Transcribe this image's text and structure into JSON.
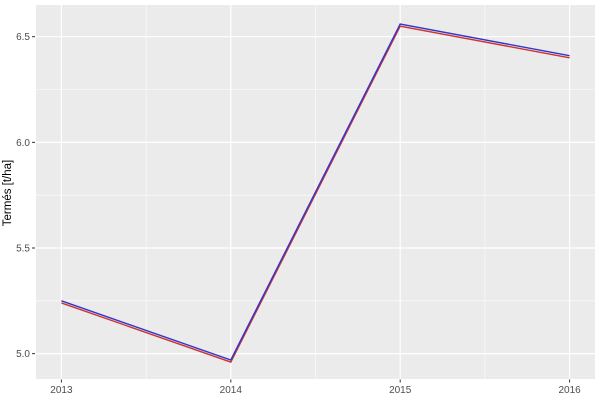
{
  "chart_data": {
    "type": "line",
    "title": "",
    "xlabel": "",
    "ylabel": "Termés [t/ha]",
    "x": [
      2013,
      2014,
      2015,
      2016
    ],
    "x_ticks": [
      2013,
      2014,
      2015,
      2016
    ],
    "x_tick_labels": [
      "2013",
      "2014",
      "2015",
      "2016"
    ],
    "y_ticks": [
      5.0,
      5.5,
      6.0,
      6.5
    ],
    "y_tick_labels": [
      "5.0",
      "5.5",
      "6.0",
      "6.5"
    ],
    "xlim": [
      2012.85,
      2016.15
    ],
    "ylim": [
      4.88,
      6.65
    ],
    "grid": "major+minor",
    "legend": "none",
    "series": [
      {
        "name": "red-line",
        "color": "#CB3434",
        "values": [
          5.24,
          4.96,
          6.55,
          6.4
        ]
      },
      {
        "name": "blue-line",
        "color": "#3434CB",
        "values": [
          5.25,
          4.97,
          6.56,
          6.41
        ]
      }
    ]
  },
  "style": {
    "figure_bg": "#FFFFFF",
    "panel_bg": "#EBEBEB",
    "grid_color": "#FFFFFF",
    "tick_color": "#333333",
    "tick_label_color": "#4D4D4D",
    "axis_title_color": "#000000"
  }
}
